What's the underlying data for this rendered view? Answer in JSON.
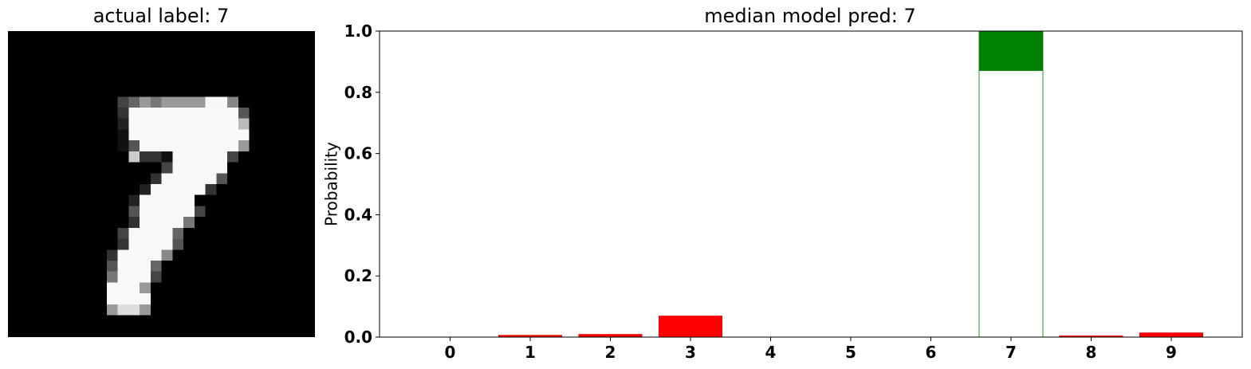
{
  "left_panel": {
    "title": "actual label: 7"
  },
  "right_panel": {
    "title": "median model pred: 7"
  },
  "chart_data": {
    "type": "bar",
    "title": "median model pred: 7",
    "xlabel": "",
    "ylabel": "Probability",
    "categories": [
      "0",
      "1",
      "2",
      "3",
      "4",
      "5",
      "6",
      "7",
      "8",
      "9"
    ],
    "values": [
      0.0,
      0.007,
      0.01,
      0.07,
      0.0,
      0.0,
      0.0,
      1.0,
      0.005,
      0.015
    ],
    "predicted_overlay": {
      "category": "7",
      "lower": 0.87,
      "upper": 1.0
    },
    "yticks": [
      "0.0",
      "0.2",
      "0.4",
      "0.6",
      "0.8",
      "1.0"
    ],
    "ylim": [
      0,
      1.0
    ],
    "grid": false,
    "colors": {
      "default_bar": "#ff0000",
      "predicted_bar": "#008000"
    }
  }
}
